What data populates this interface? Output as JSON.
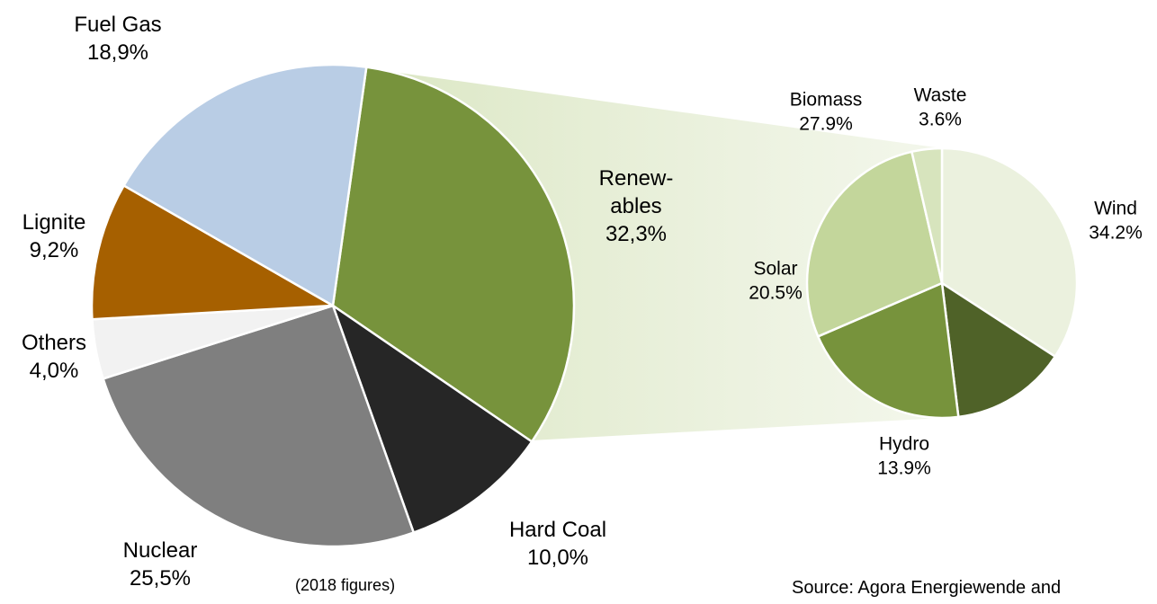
{
  "chart_data": [
    {
      "type": "pie",
      "categories": [
        "Renew-\nables",
        "Hard Coal",
        "Nuclear",
        "Others",
        "Lignite",
        "Fuel Gas"
      ],
      "values": [
        32.3,
        10.0,
        25.5,
        4.0,
        9.2,
        18.9
      ],
      "value_labels": [
        "32,3%",
        "10,0%",
        "25,5%",
        "4,0%",
        "9,2%",
        "18,9%"
      ],
      "colors": [
        "#77933c",
        "#262626",
        "#7f7f7f",
        "#f2f2f2",
        "#a66000",
        "#b9cde5"
      ],
      "annotations": [
        "(2018 figures)",
        "Source: Agora Energiewende and"
      ]
    },
    {
      "type": "pie",
      "categories": [
        "Wind",
        "Hydro",
        "Solar",
        "Biomass",
        "Waste"
      ],
      "values": [
        34.2,
        13.9,
        20.5,
        27.9,
        3.6
      ],
      "value_labels": [
        "34.2%",
        "13.9%",
        "20.5%",
        "27.9%",
        "3.6%"
      ],
      "colors": [
        "#ebf1de",
        "#4f6228",
        "#77933c",
        "#c3d69b",
        "#d7e4bd"
      ]
    }
  ]
}
